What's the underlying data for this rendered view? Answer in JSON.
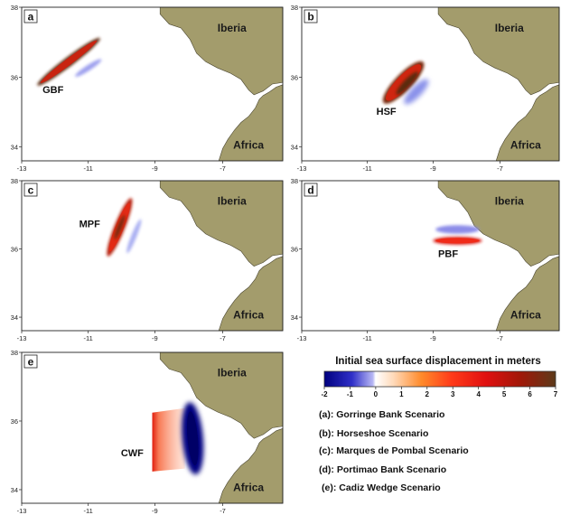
{
  "map_common": {
    "land_color": "#a39c6c",
    "sea_color": "#ffffff",
    "x_ticks": [
      "-13",
      "-11",
      "-9",
      "-7"
    ],
    "y_ticks": [
      "38",
      "36",
      "34"
    ],
    "region_north": "Iberia",
    "region_south": "Africa"
  },
  "panels": [
    {
      "letter": "a",
      "fault": "GBF",
      "scenario": "Gorringe Bank Scenario"
    },
    {
      "letter": "b",
      "fault": "HSF",
      "scenario": "Horseshoe Scenario"
    },
    {
      "letter": "c",
      "fault": "MPF",
      "scenario": "Marques de Pombal Scenario"
    },
    {
      "letter": "d",
      "fault": "PBF",
      "scenario": "Portimao Bank Scenario"
    },
    {
      "letter": "e",
      "fault": "CWF",
      "scenario": "Cadiz Wedge Scenario"
    }
  ],
  "colorbar": {
    "title": "Initial sea surface displacement in meters",
    "ticks": [
      "-2",
      "-1",
      "0",
      "1",
      "2",
      "3",
      "4",
      "5",
      "6",
      "7"
    ],
    "min_color": "#00007f",
    "zero_color": "#ffffff",
    "max_color": "#5c3a1a"
  },
  "legend": [
    "(a): Gorringe Bank Scenario",
    "(b): Horseshoe Scenario",
    "(c): Marques de Pombal Scenario",
    "(d): Portimao Bank Scenario",
    "(e): Cadiz Wedge Scenario"
  ]
}
